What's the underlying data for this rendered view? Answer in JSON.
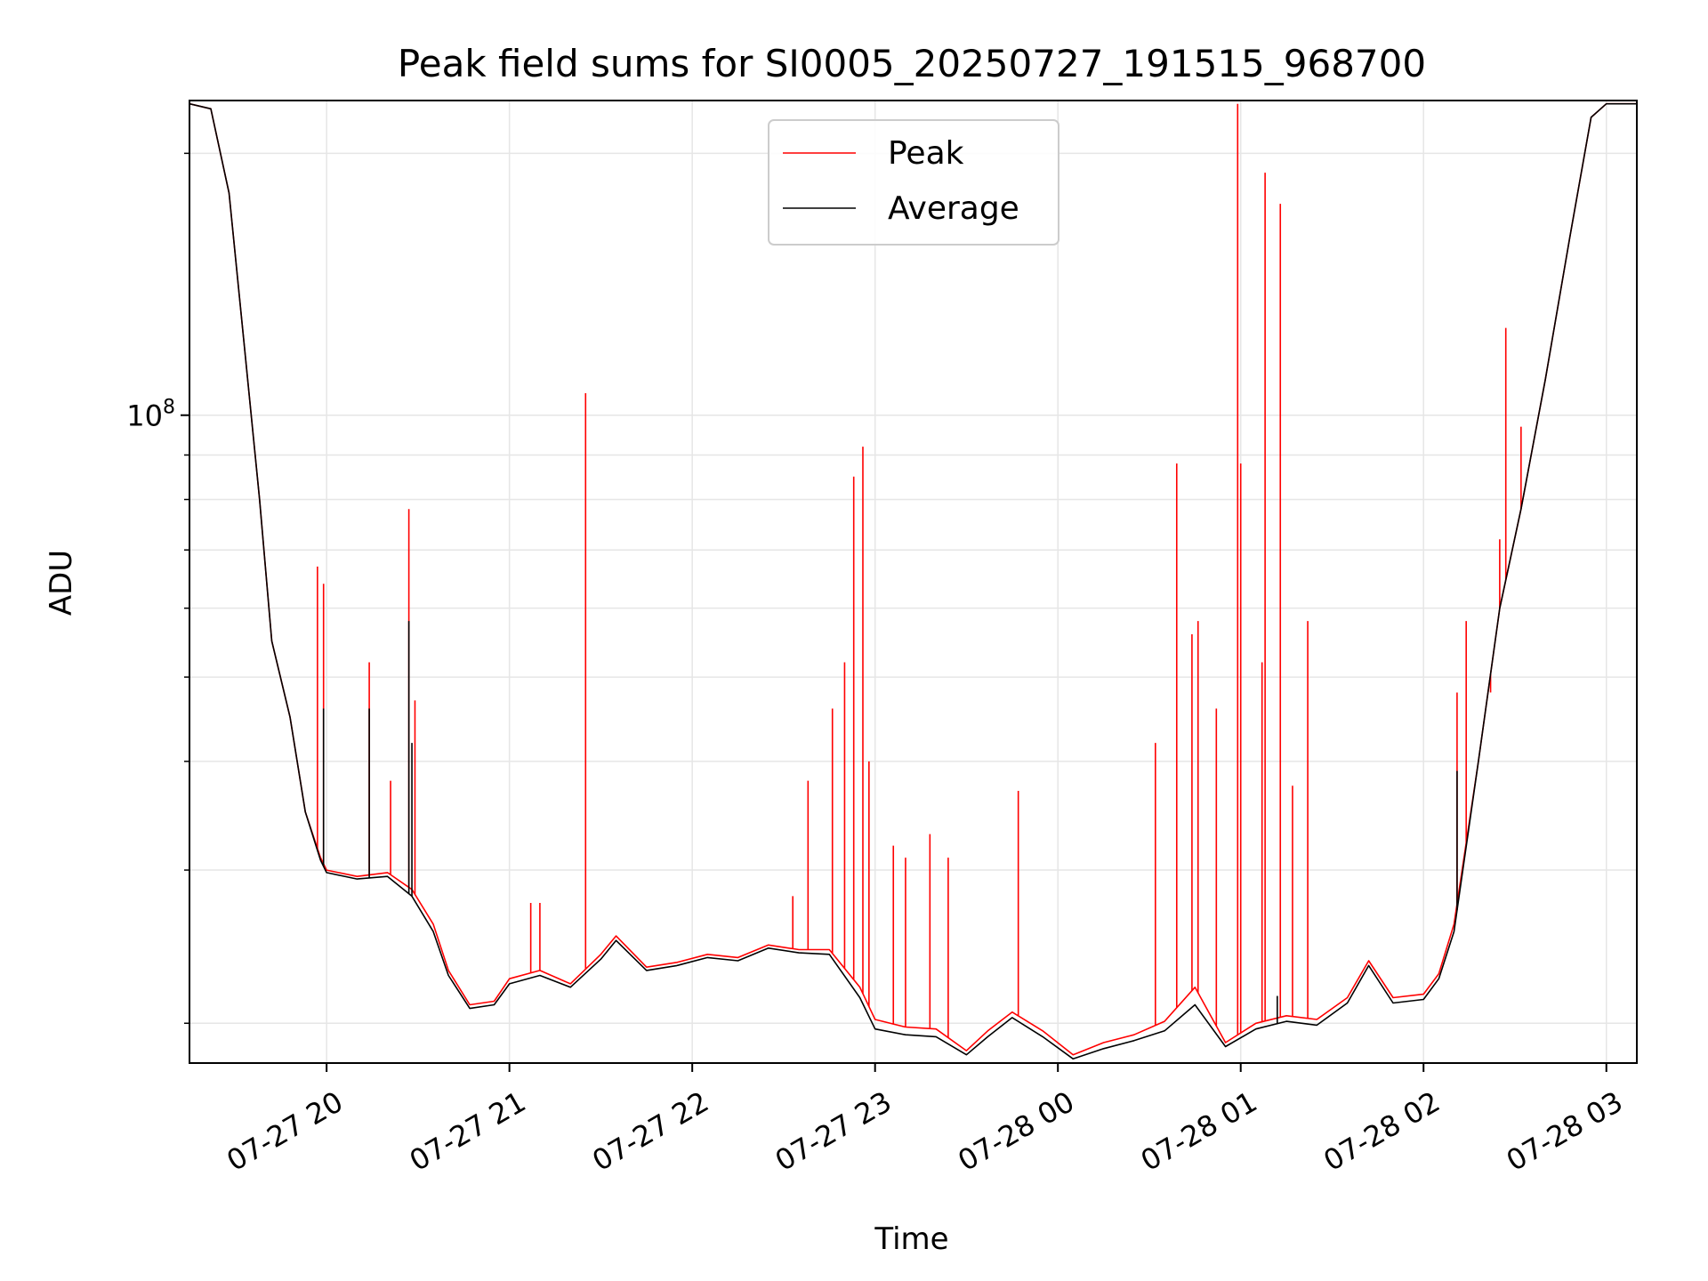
{
  "chart_data": {
    "type": "line",
    "title": "Peak field sums for SI0005_20250727_191515_968700",
    "xlabel": "Time",
    "ylabel": "ADU",
    "yscale": "log",
    "grid": true,
    "legend_position": "top-center",
    "colors": {
      "Peak": "#ff0000",
      "Average": "#000000",
      "grid": "#e6e6e6"
    },
    "x_tick_labels": [
      "07-27 20",
      "07-27 21",
      "07-27 22",
      "07-27 23",
      "07-28 00",
      "07-28 01",
      "07-28 02",
      "07-28 03"
    ],
    "x_tick_values": [
      "2025-07-27 20:00",
      "2025-07-27 21:00",
      "2025-07-27 22:00",
      "2025-07-27 23:00",
      "2025-07-28 00:00",
      "2025-07-28 01:00",
      "2025-07-28 02:00",
      "2025-07-28 03:00"
    ],
    "xlim": [
      "2025-07-27 19:15",
      "2025-07-28 03:10"
    ],
    "y_tick_labels": [
      {
        "value": 100000000,
        "base": "10",
        "exp": "8"
      }
    ],
    "y_minor_ticks": [
      20000000,
      30000000,
      40000000,
      50000000,
      60000000,
      70000000,
      80000000,
      90000000,
      200000000
    ],
    "ylim": [
      18000000,
      230000000
    ],
    "series": [
      {
        "name": "Peak",
        "points": [
          [
            "2025-07-27 19:15",
            228000000
          ],
          [
            "2025-07-27 19:22",
            225000000
          ],
          [
            "2025-07-27 19:28",
            180000000
          ],
          [
            "2025-07-27 19:33",
            120000000
          ],
          [
            "2025-07-27 19:38",
            80000000
          ],
          [
            "2025-07-27 19:42",
            55000000
          ],
          [
            "2025-07-27 19:48",
            45000000
          ],
          [
            "2025-07-27 19:53",
            35000000
          ],
          [
            "2025-07-27 19:58",
            31000000
          ],
          [
            "2025-07-27 20:00",
            30000000
          ],
          [
            "2025-07-27 20:10",
            29500000
          ],
          [
            "2025-07-27 20:20",
            29800000
          ],
          [
            "2025-07-27 20:28",
            28500000
          ],
          [
            "2025-07-27 20:35",
            26000000
          ],
          [
            "2025-07-27 20:40",
            23000000
          ],
          [
            "2025-07-27 20:47",
            21000000
          ],
          [
            "2025-07-27 20:55",
            21200000
          ],
          [
            "2025-07-27 21:00",
            22500000
          ],
          [
            "2025-07-27 21:10",
            23000000
          ],
          [
            "2025-07-27 21:20",
            22200000
          ],
          [
            "2025-07-27 21:30",
            24000000
          ],
          [
            "2025-07-27 21:35",
            25200000
          ],
          [
            "2025-07-27 21:45",
            23200000
          ],
          [
            "2025-07-27 21:55",
            23500000
          ],
          [
            "2025-07-27 22:05",
            24000000
          ],
          [
            "2025-07-27 22:15",
            23800000
          ],
          [
            "2025-07-27 22:25",
            24600000
          ],
          [
            "2025-07-27 22:35",
            24300000
          ],
          [
            "2025-07-27 22:45",
            24300000
          ],
          [
            "2025-07-27 22:55",
            22000000
          ],
          [
            "2025-07-27 23:00",
            20200000
          ],
          [
            "2025-07-27 23:10",
            19800000
          ],
          [
            "2025-07-27 23:20",
            19700000
          ],
          [
            "2025-07-27 23:30",
            18600000
          ],
          [
            "2025-07-27 23:37",
            19600000
          ],
          [
            "2025-07-27 23:45",
            20600000
          ],
          [
            "2025-07-27 23:55",
            19600000
          ],
          [
            "2025-07-28 00:05",
            18400000
          ],
          [
            "2025-07-28 00:15",
            19000000
          ],
          [
            "2025-07-28 00:25",
            19400000
          ],
          [
            "2025-07-28 00:35",
            20100000
          ],
          [
            "2025-07-28 00:45",
            22000000
          ],
          [
            "2025-07-28 00:55",
            19000000
          ],
          [
            "2025-07-28 01:05",
            20000000
          ],
          [
            "2025-07-28 01:15",
            20400000
          ],
          [
            "2025-07-28 01:25",
            20200000
          ],
          [
            "2025-07-28 01:35",
            21400000
          ],
          [
            "2025-07-28 01:42",
            23600000
          ],
          [
            "2025-07-28 01:50",
            21400000
          ],
          [
            "2025-07-28 02:00",
            21600000
          ],
          [
            "2025-07-28 02:05",
            22800000
          ],
          [
            "2025-07-28 02:10",
            26000000
          ],
          [
            "2025-07-28 02:18",
            40000000
          ],
          [
            "2025-07-28 02:25",
            60000000
          ],
          [
            "2025-07-28 02:32",
            78000000
          ],
          [
            "2025-07-28 02:40",
            110000000
          ],
          [
            "2025-07-28 02:48",
            160000000
          ],
          [
            "2025-07-28 02:55",
            220000000
          ],
          [
            "2025-07-28 03:00",
            228000000
          ],
          [
            "2025-07-28 03:10",
            228000000
          ]
        ],
        "spikes": [
          [
            "2025-07-27 19:57",
            67000000
          ],
          [
            "2025-07-27 19:59",
            64000000
          ],
          [
            "2025-07-27 20:14",
            52000000
          ],
          [
            "2025-07-27 20:21",
            38000000
          ],
          [
            "2025-07-27 20:27",
            78000000
          ],
          [
            "2025-07-27 20:29",
            47000000
          ],
          [
            "2025-07-27 21:07",
            27500000
          ],
          [
            "2025-07-27 21:10",
            27500000
          ],
          [
            "2025-07-27 21:25",
            106000000
          ],
          [
            "2025-07-27 22:33",
            28000000
          ],
          [
            "2025-07-27 22:38",
            38000000
          ],
          [
            "2025-07-27 22:46",
            46000000
          ],
          [
            "2025-07-27 22:50",
            52000000
          ],
          [
            "2025-07-27 22:53",
            85000000
          ],
          [
            "2025-07-27 22:56",
            92000000
          ],
          [
            "2025-07-27 22:58",
            40000000
          ],
          [
            "2025-07-27 23:06",
            32000000
          ],
          [
            "2025-07-27 23:10",
            31000000
          ],
          [
            "2025-07-27 23:18",
            33000000
          ],
          [
            "2025-07-27 23:24",
            31000000
          ],
          [
            "2025-07-27 23:47",
            37000000
          ],
          [
            "2025-07-28 00:32",
            42000000
          ],
          [
            "2025-07-28 00:39",
            88000000
          ],
          [
            "2025-07-28 00:44",
            56000000
          ],
          [
            "2025-07-28 00:46",
            58000000
          ],
          [
            "2025-07-28 00:52",
            46000000
          ],
          [
            "2025-07-28 00:59",
            228000000
          ],
          [
            "2025-07-28 01:00",
            88000000
          ],
          [
            "2025-07-28 01:07",
            52000000
          ],
          [
            "2025-07-28 01:08",
            190000000
          ],
          [
            "2025-07-28 01:13",
            175000000
          ],
          [
            "2025-07-28 01:17",
            37500000
          ],
          [
            "2025-07-28 01:22",
            58000000
          ],
          [
            "2025-07-28 02:11",
            48000000
          ],
          [
            "2025-07-28 02:14",
            58000000
          ],
          [
            "2025-07-28 02:22",
            48000000
          ],
          [
            "2025-07-28 02:25",
            72000000
          ],
          [
            "2025-07-28 02:27",
            126000000
          ],
          [
            "2025-07-28 02:32",
            97000000
          ]
        ]
      },
      {
        "name": "Average",
        "points": [
          [
            "2025-07-27 19:15",
            228000000
          ],
          [
            "2025-07-27 19:22",
            225000000
          ],
          [
            "2025-07-27 19:28",
            180000000
          ],
          [
            "2025-07-27 19:33",
            120000000
          ],
          [
            "2025-07-27 19:38",
            80000000
          ],
          [
            "2025-07-27 19:42",
            55000000
          ],
          [
            "2025-07-27 19:48",
            45000000
          ],
          [
            "2025-07-27 19:53",
            35000000
          ],
          [
            "2025-07-27 19:58",
            30800000
          ],
          [
            "2025-07-27 20:00",
            29800000
          ],
          [
            "2025-07-27 20:10",
            29300000
          ],
          [
            "2025-07-27 20:20",
            29500000
          ],
          [
            "2025-07-27 20:28",
            28000000
          ],
          [
            "2025-07-27 20:35",
            25500000
          ],
          [
            "2025-07-27 20:40",
            22700000
          ],
          [
            "2025-07-27 20:47",
            20800000
          ],
          [
            "2025-07-27 20:55",
            21000000
          ],
          [
            "2025-07-27 21:00",
            22200000
          ],
          [
            "2025-07-27 21:10",
            22700000
          ],
          [
            "2025-07-27 21:20",
            22000000
          ],
          [
            "2025-07-27 21:30",
            23700000
          ],
          [
            "2025-07-27 21:35",
            24900000
          ],
          [
            "2025-07-27 21:45",
            23000000
          ],
          [
            "2025-07-27 21:55",
            23300000
          ],
          [
            "2025-07-27 22:05",
            23800000
          ],
          [
            "2025-07-27 22:15",
            23600000
          ],
          [
            "2025-07-27 22:25",
            24400000
          ],
          [
            "2025-07-27 22:35",
            24100000
          ],
          [
            "2025-07-27 22:45",
            24000000
          ],
          [
            "2025-07-27 22:55",
            21400000
          ],
          [
            "2025-07-27 23:00",
            19700000
          ],
          [
            "2025-07-27 23:10",
            19400000
          ],
          [
            "2025-07-27 23:20",
            19300000
          ],
          [
            "2025-07-27 23:30",
            18400000
          ],
          [
            "2025-07-27 23:37",
            19300000
          ],
          [
            "2025-07-27 23:45",
            20300000
          ],
          [
            "2025-07-27 23:55",
            19300000
          ],
          [
            "2025-07-28 00:05",
            18200000
          ],
          [
            "2025-07-28 00:15",
            18700000
          ],
          [
            "2025-07-28 00:25",
            19100000
          ],
          [
            "2025-07-28 00:35",
            19600000
          ],
          [
            "2025-07-28 00:45",
            21000000
          ],
          [
            "2025-07-28 00:55",
            18800000
          ],
          [
            "2025-07-28 01:05",
            19700000
          ],
          [
            "2025-07-28 01:15",
            20100000
          ],
          [
            "2025-07-28 01:25",
            19900000
          ],
          [
            "2025-07-28 01:35",
            21100000
          ],
          [
            "2025-07-28 01:42",
            23300000
          ],
          [
            "2025-07-28 01:50",
            21100000
          ],
          [
            "2025-07-28 02:00",
            21300000
          ],
          [
            "2025-07-28 02:05",
            22500000
          ],
          [
            "2025-07-28 02:10",
            25500000
          ],
          [
            "2025-07-28 02:18",
            40000000
          ],
          [
            "2025-07-28 02:25",
            60000000
          ],
          [
            "2025-07-28 02:32",
            78000000
          ],
          [
            "2025-07-28 02:40",
            110000000
          ],
          [
            "2025-07-28 02:48",
            160000000
          ],
          [
            "2025-07-28 02:55",
            220000000
          ],
          [
            "2025-07-28 03:00",
            228000000
          ],
          [
            "2025-07-28 03:10",
            228000000
          ]
        ],
        "spikes": [
          [
            "2025-07-27 19:59",
            46000000
          ],
          [
            "2025-07-27 20:14",
            46000000
          ],
          [
            "2025-07-27 20:27",
            58000000
          ],
          [
            "2025-07-27 20:28",
            42000000
          ],
          [
            "2025-07-28 01:12",
            21500000
          ],
          [
            "2025-07-28 02:11",
            39000000
          ]
        ]
      }
    ]
  }
}
